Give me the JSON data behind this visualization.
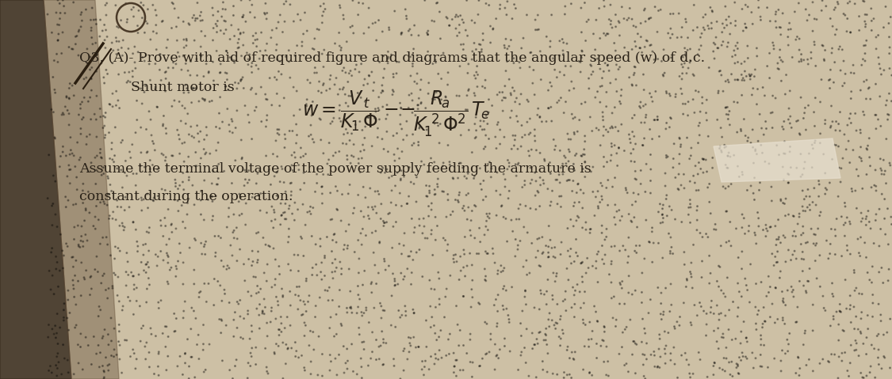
{
  "bg_color_light": "#d4c9b0",
  "bg_color_paper": "#cdc0a5",
  "bg_color_dark_left": "#5a4a38",
  "text_color": "#2a2218",
  "title_line1": "Q3. (A)- Prove with aid of required figure and diagrams that the angular speed (w) of d.c.",
  "title_line2": "Shunt motor is",
  "note_line1": "Assume the terminal voltage of the power supply feeding the armature is",
  "note_line2": "constant during the operation.",
  "fig_width": 11.25,
  "fig_height": 4.79,
  "dpi": 100
}
